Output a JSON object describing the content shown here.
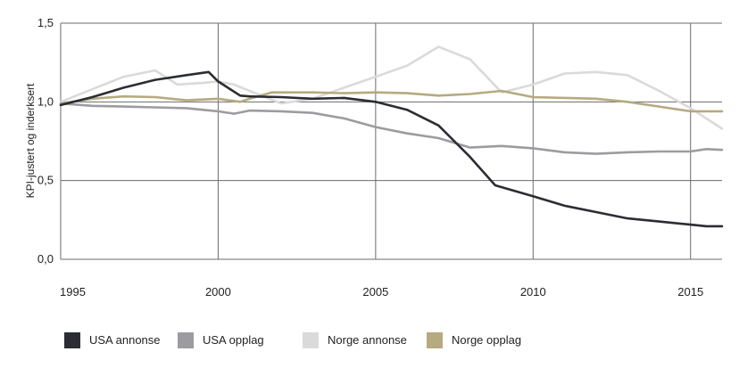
{
  "chart_data": {
    "type": "line",
    "ylabel": "KPI-justert og inderksert",
    "xlim": [
      1995,
      2016
    ],
    "ylim": [
      0,
      1.5
    ],
    "x_ticks": [
      "1995",
      "2000",
      "2005",
      "2010",
      "2015"
    ],
    "y_ticks": [
      "0,0",
      "0,5",
      "1,0",
      "1,5"
    ],
    "grid": true,
    "legend_position": "bottom",
    "series": [
      {
        "name": "USA annonse",
        "color": "#2b2d33",
        "points": [
          [
            1995,
            0.98
          ],
          [
            1996,
            1.03
          ],
          [
            1997,
            1.09
          ],
          [
            1998,
            1.14
          ],
          [
            1999,
            1.17
          ],
          [
            1999.7,
            1.19
          ],
          [
            2000,
            1.13
          ],
          [
            2000.7,
            1.04
          ],
          [
            2001,
            1.035
          ],
          [
            2002,
            1.03
          ],
          [
            2003,
            1.02
          ],
          [
            2004,
            1.025
          ],
          [
            2005,
            1.0
          ],
          [
            2006,
            0.95
          ],
          [
            2007,
            0.85
          ],
          [
            2008,
            0.65
          ],
          [
            2008.8,
            0.47
          ],
          [
            2010,
            0.4
          ],
          [
            2011,
            0.34
          ],
          [
            2012,
            0.3
          ],
          [
            2013,
            0.26
          ],
          [
            2014,
            0.24
          ],
          [
            2015,
            0.22
          ],
          [
            2015.5,
            0.21
          ],
          [
            2016,
            0.21
          ]
        ]
      },
      {
        "name": "USA opplag",
        "color": "#9c9ca0",
        "points": [
          [
            1995,
            0.99
          ],
          [
            1996,
            0.975
          ],
          [
            1997,
            0.97
          ],
          [
            1998,
            0.965
          ],
          [
            1999,
            0.96
          ],
          [
            2000,
            0.94
          ],
          [
            2000.5,
            0.925
          ],
          [
            2001,
            0.945
          ],
          [
            2002,
            0.94
          ],
          [
            2003,
            0.93
          ],
          [
            2004,
            0.895
          ],
          [
            2005,
            0.84
          ],
          [
            2006,
            0.8
          ],
          [
            2007,
            0.77
          ],
          [
            2008,
            0.71
          ],
          [
            2009,
            0.72
          ],
          [
            2010,
            0.705
          ],
          [
            2011,
            0.68
          ],
          [
            2012,
            0.67
          ],
          [
            2013,
            0.68
          ],
          [
            2014,
            0.685
          ],
          [
            2015,
            0.685
          ],
          [
            2015.5,
            0.7
          ],
          [
            2016,
            0.695
          ]
        ]
      },
      {
        "name": "Norge annonse",
        "color": "#dadada",
        "points": [
          [
            1995,
            1.0
          ],
          [
            1996,
            1.08
          ],
          [
            1997,
            1.16
          ],
          [
            1998,
            1.2
          ],
          [
            1998.7,
            1.11
          ],
          [
            1999.5,
            1.12
          ],
          [
            2000,
            1.13
          ],
          [
            2000.5,
            1.11
          ],
          [
            2001,
            1.07
          ],
          [
            2002,
            0.99
          ],
          [
            2003,
            1.02
          ],
          [
            2004,
            1.09
          ],
          [
            2005,
            1.16
          ],
          [
            2006,
            1.23
          ],
          [
            2007,
            1.35
          ],
          [
            2008,
            1.27
          ],
          [
            2009,
            1.06
          ],
          [
            2010,
            1.11
          ],
          [
            2011,
            1.18
          ],
          [
            2012,
            1.19
          ],
          [
            2013,
            1.17
          ],
          [
            2014,
            1.07
          ],
          [
            2015,
            0.96
          ],
          [
            2016,
            0.83
          ]
        ]
      },
      {
        "name": "Norge opplag",
        "color": "#b5aa80",
        "points": [
          [
            1995,
            0.99
          ],
          [
            1996,
            1.02
          ],
          [
            1997,
            1.035
          ],
          [
            1998,
            1.03
          ],
          [
            1999,
            1.01
          ],
          [
            2000,
            1.02
          ],
          [
            2000.7,
            1.0
          ],
          [
            2001,
            1.02
          ],
          [
            2001.7,
            1.06
          ],
          [
            2002,
            1.06
          ],
          [
            2003,
            1.06
          ],
          [
            2004,
            1.055
          ],
          [
            2005,
            1.06
          ],
          [
            2006,
            1.055
          ],
          [
            2007,
            1.04
          ],
          [
            2008,
            1.05
          ],
          [
            2009,
            1.07
          ],
          [
            2010,
            1.03
          ],
          [
            2011,
            1.025
          ],
          [
            2012,
            1.02
          ],
          [
            2013,
            1.0
          ],
          [
            2014,
            0.97
          ],
          [
            2015,
            0.94
          ],
          [
            2016,
            0.94
          ]
        ]
      }
    ]
  }
}
